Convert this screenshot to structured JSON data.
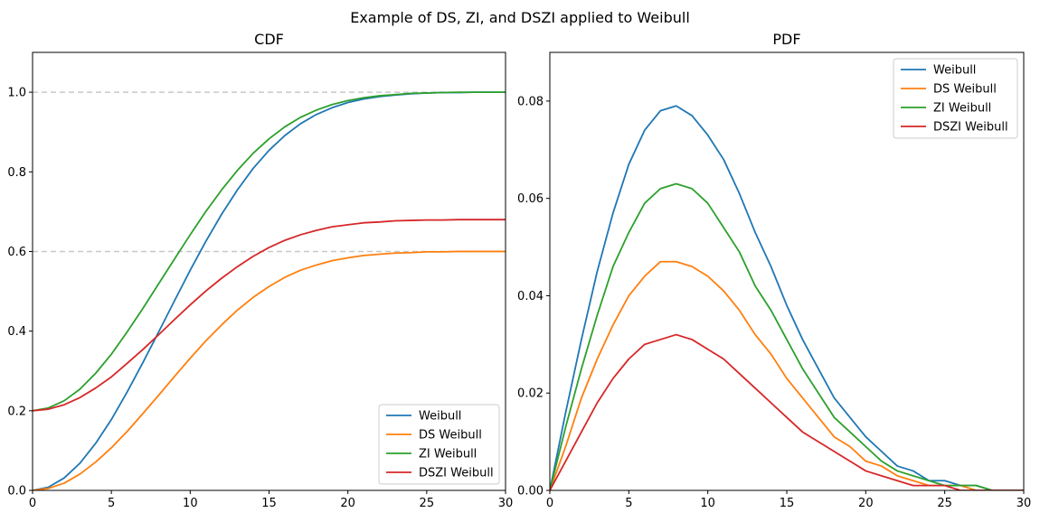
{
  "figure": {
    "suptitle": "Example of DS, ZI, and DSZI applied to Weibull"
  },
  "chart_data": [
    {
      "type": "line",
      "title": "CDF",
      "xlabel": "",
      "ylabel": "",
      "xlim": [
        0,
        30
      ],
      "ylim": [
        0,
        1.1
      ],
      "xticks": [
        0,
        5,
        10,
        15,
        20,
        25,
        30
      ],
      "yticks": [
        0.0,
        0.2,
        0.4,
        0.6,
        0.8,
        1.0
      ],
      "ytick_labels": [
        "0.0",
        "0.2",
        "0.4",
        "0.6",
        "0.8",
        "1.0"
      ],
      "hlines": [
        {
          "y": 1.0,
          "color": "#c8c8c8",
          "style": "dashed"
        },
        {
          "y": 0.6,
          "color": "#c8c8c8",
          "style": "dashed"
        }
      ],
      "legend": "lower-right",
      "grid": false,
      "x": [
        0,
        1,
        2,
        3,
        4,
        5,
        6,
        7,
        8,
        9,
        10,
        11,
        12,
        13,
        14,
        15,
        16,
        17,
        18,
        19,
        20,
        21,
        22,
        23,
        24,
        25,
        26,
        27,
        28,
        29,
        30
      ],
      "series": [
        {
          "name": "Weibull",
          "color": "#1f77b4",
          "values": [
            0.0,
            0.008,
            0.031,
            0.068,
            0.118,
            0.178,
            0.247,
            0.321,
            0.398,
            0.476,
            0.553,
            0.626,
            0.694,
            0.755,
            0.809,
            0.854,
            0.891,
            0.921,
            0.944,
            0.961,
            0.974,
            0.983,
            0.989,
            0.993,
            0.996,
            0.998,
            0.999,
            0.999,
            1.0,
            1.0,
            1.0
          ]
        },
        {
          "name": "DS Weibull",
          "color": "#ff7f0e",
          "values": [
            0.0,
            0.005,
            0.018,
            0.041,
            0.071,
            0.107,
            0.148,
            0.193,
            0.239,
            0.286,
            0.332,
            0.376,
            0.416,
            0.453,
            0.485,
            0.512,
            0.535,
            0.553,
            0.566,
            0.577,
            0.584,
            0.59,
            0.593,
            0.596,
            0.597,
            0.599,
            0.599,
            0.6,
            0.6,
            0.6,
            0.6
          ]
        },
        {
          "name": "ZI Weibull",
          "color": "#2ca02c",
          "values": [
            0.2,
            0.207,
            0.225,
            0.254,
            0.294,
            0.342,
            0.398,
            0.457,
            0.519,
            0.581,
            0.642,
            0.701,
            0.755,
            0.804,
            0.847,
            0.883,
            0.913,
            0.937,
            0.955,
            0.969,
            0.979,
            0.986,
            0.991,
            0.994,
            0.997,
            0.998,
            0.999,
            1.0,
            1.0,
            1.0,
            1.0
          ]
        },
        {
          "name": "DSZI Weibull",
          "color": "#d62728",
          "values": [
            0.2,
            0.204,
            0.215,
            0.233,
            0.257,
            0.285,
            0.319,
            0.354,
            0.391,
            0.429,
            0.466,
            0.501,
            0.533,
            0.562,
            0.588,
            0.61,
            0.628,
            0.642,
            0.653,
            0.662,
            0.667,
            0.672,
            0.674,
            0.677,
            0.678,
            0.679,
            0.679,
            0.68,
            0.68,
            0.68,
            0.68
          ]
        }
      ]
    },
    {
      "type": "line",
      "title": "PDF",
      "xlabel": "",
      "ylabel": "",
      "xlim": [
        0,
        30
      ],
      "ylim": [
        0,
        0.09
      ],
      "xticks": [
        0,
        5,
        10,
        15,
        20,
        25,
        30
      ],
      "yticks": [
        0.0,
        0.02,
        0.04,
        0.06,
        0.08
      ],
      "ytick_labels": [
        "0.00",
        "0.02",
        "0.04",
        "0.06",
        "0.08"
      ],
      "legend": "upper-right",
      "grid": false,
      "x": [
        0,
        1,
        2,
        3,
        4,
        5,
        6,
        7,
        8,
        9,
        10,
        11,
        12,
        13,
        14,
        15,
        16,
        17,
        18,
        19,
        20,
        21,
        22,
        23,
        24,
        25,
        26,
        27,
        28,
        29,
        30
      ],
      "series": [
        {
          "name": "Weibull",
          "color": "#1f77b4",
          "values": [
            0.0,
            0.016,
            0.031,
            0.045,
            0.057,
            0.067,
            0.074,
            0.078,
            0.079,
            0.077,
            0.073,
            0.068,
            0.061,
            0.053,
            0.046,
            0.038,
            0.031,
            0.025,
            0.019,
            0.015,
            0.011,
            0.008,
            0.005,
            0.004,
            0.002,
            0.002,
            0.001,
            0.001,
            0.0,
            0.0,
            0.0
          ]
        },
        {
          "name": "DS Weibull",
          "color": "#ff7f0e",
          "values": [
            0.0,
            0.009,
            0.019,
            0.027,
            0.034,
            0.04,
            0.044,
            0.047,
            0.047,
            0.046,
            0.044,
            0.041,
            0.037,
            0.032,
            0.028,
            0.023,
            0.019,
            0.015,
            0.011,
            0.009,
            0.006,
            0.005,
            0.003,
            0.002,
            0.001,
            0.001,
            0.001,
            0.0,
            0.0,
            0.0,
            0.0
          ]
        },
        {
          "name": "ZI Weibull",
          "color": "#2ca02c",
          "values": [
            0.0,
            0.013,
            0.025,
            0.036,
            0.046,
            0.053,
            0.059,
            0.062,
            0.063,
            0.062,
            0.059,
            0.054,
            0.049,
            0.042,
            0.037,
            0.031,
            0.025,
            0.02,
            0.015,
            0.012,
            0.009,
            0.006,
            0.004,
            0.003,
            0.002,
            0.001,
            0.001,
            0.001,
            0.0,
            0.0,
            0.0
          ]
        },
        {
          "name": "DSZI Weibull",
          "color": "#d62728",
          "values": [
            0.0,
            0.006,
            0.012,
            0.018,
            0.023,
            0.027,
            0.03,
            0.031,
            0.032,
            0.031,
            0.029,
            0.027,
            0.024,
            0.021,
            0.018,
            0.015,
            0.012,
            0.01,
            0.008,
            0.006,
            0.004,
            0.003,
            0.002,
            0.001,
            0.001,
            0.001,
            0.0,
            0.0,
            0.0,
            0.0,
            0.0
          ]
        }
      ]
    }
  ]
}
